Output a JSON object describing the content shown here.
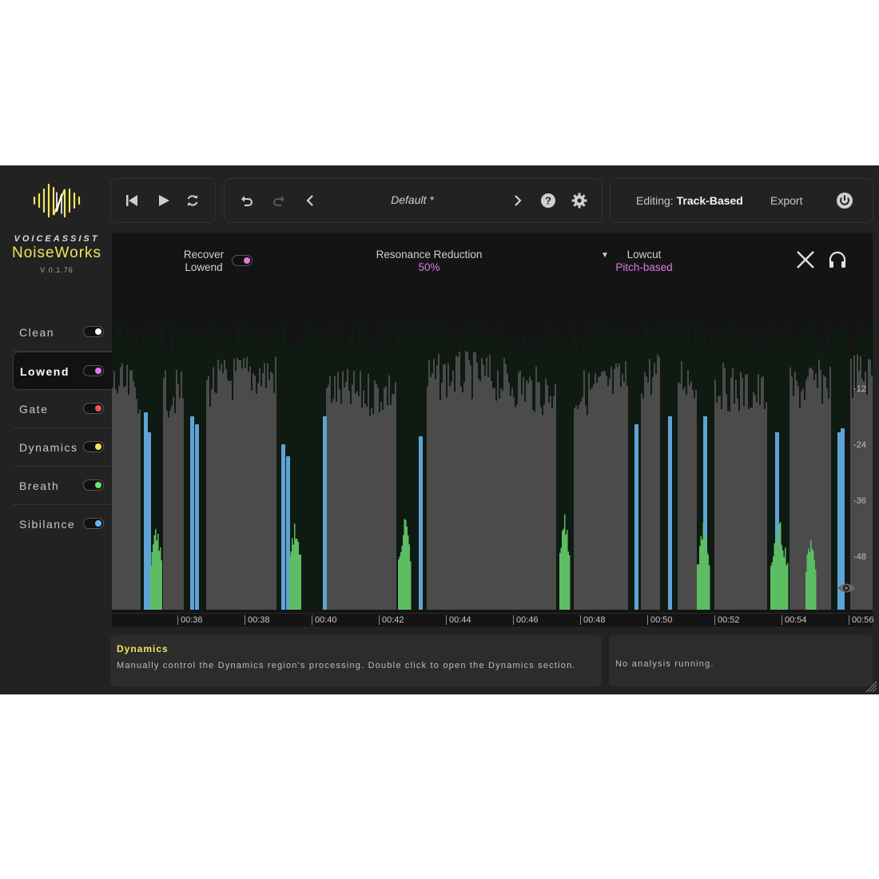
{
  "brand": {
    "line1": "VOICEASSIST",
    "line2": "NoiseWorks",
    "version": "V 0.1.76",
    "logo_color": "#f2e55d"
  },
  "sidebar": {
    "items": [
      {
        "label": "Clean",
        "dot_color": "#ffffff",
        "active": false
      },
      {
        "label": "Lowend",
        "dot_color": "#e07ae6",
        "active": true
      },
      {
        "label": "Gate",
        "dot_color": "#ef5350",
        "active": false
      },
      {
        "label": "Dynamics",
        "dot_color": "#f2e55d",
        "active": false
      },
      {
        "label": "Breath",
        "dot_color": "#6ee06e",
        "active": false
      },
      {
        "label": "Sibilance",
        "dot_color": "#64b5f6",
        "active": false
      }
    ]
  },
  "toolbar": {
    "preset_name": "Default *",
    "editing_prefix": "Editing:",
    "editing_mode": "Track-Based",
    "export_label": "Export",
    "icons": [
      "skip-back-icon",
      "play-icon",
      "loop-icon",
      "undo-icon",
      "redo-icon",
      "chevron-left-icon",
      "chevron-right-icon",
      "help-icon",
      "gear-icon",
      "power-icon"
    ]
  },
  "controls": {
    "recover_line1": "Recover",
    "recover_line2": "Lowend",
    "recover_on": true,
    "resonance_label": "Resonance Reduction",
    "resonance_value": "50%",
    "lowcut_label": "Lowcut",
    "lowcut_value": "Pitch-based",
    "accent_color": "#e07ae6"
  },
  "meter": {
    "db_labels": [
      "-12",
      "-24",
      "-36",
      "-48"
    ],
    "time_labels": [
      "00:36",
      "00:38",
      "00:40",
      "00:42",
      "00:44",
      "00:46",
      "00:48",
      "00:50",
      "00:52",
      "00:54",
      "00:56"
    ]
  },
  "info": {
    "title": "Dynamics",
    "text": "Manually control the Dynamics region's processing. Double click to open the Dynamics section.",
    "status": "No analysis running."
  }
}
